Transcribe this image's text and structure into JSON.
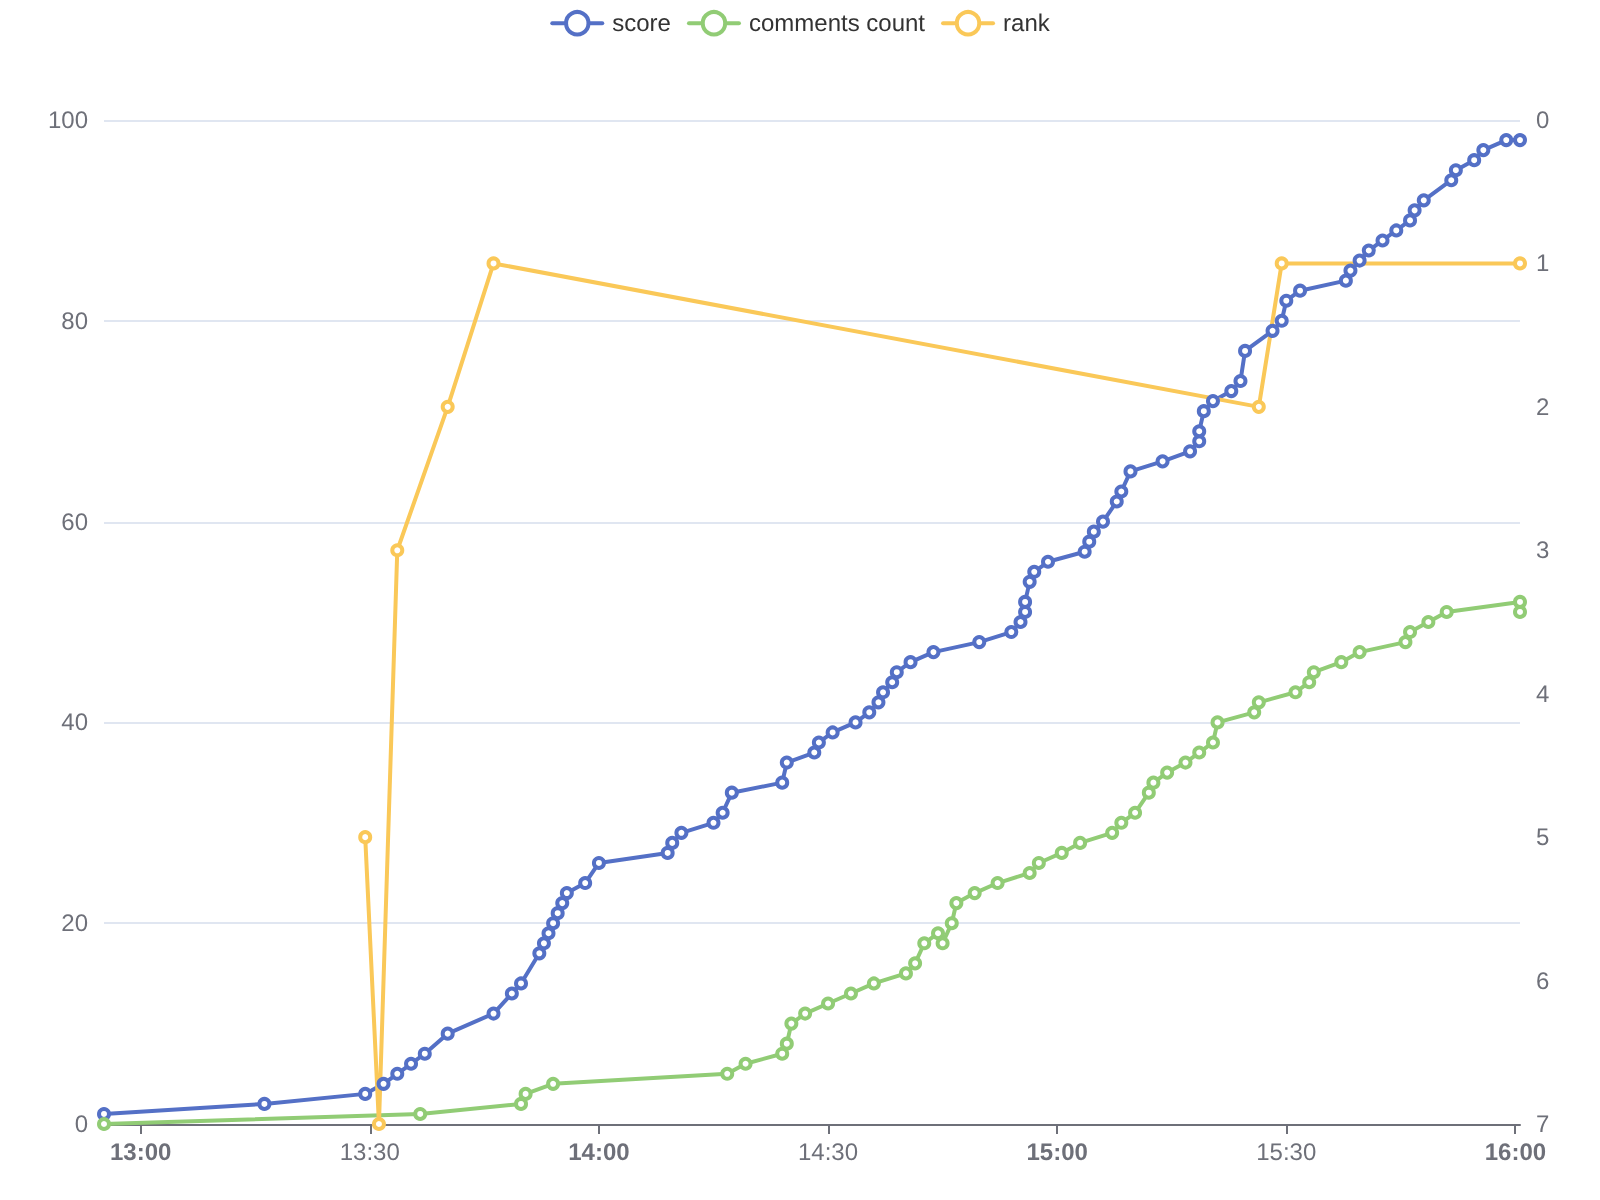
{
  "chart_data": {
    "type": "line",
    "legend": "top",
    "marker": "circle",
    "line_style": "solid",
    "grid": "y",
    "xlim": [
      12.92,
      16.01
    ],
    "xticks": [
      {
        "value": 13,
        "label": "13:00"
      },
      {
        "value": 13.5,
        "label": "13:30"
      },
      {
        "value": 14,
        "label": "14:00"
      },
      {
        "value": 14.5,
        "label": "14:30"
      },
      {
        "value": 15,
        "label": "15:00"
      },
      {
        "value": 15.5,
        "label": "15:30"
      },
      {
        "value": 16,
        "label": "16:00"
      }
    ],
    "ylim": [
      0,
      100
    ],
    "yticks": [
      0,
      20,
      40,
      60,
      80,
      100
    ],
    "y2lim": [
      7,
      0
    ],
    "y2ticks": [
      0,
      1,
      2,
      3,
      4,
      5,
      6,
      7
    ],
    "series": [
      {
        "name": "score",
        "color": "#5470c6",
        "x": [
          12.92,
          13.27,
          13.49,
          13.53,
          13.56,
          13.59,
          13.62,
          13.67,
          13.77,
          13.81,
          13.83,
          13.87,
          13.88,
          13.89,
          13.9,
          13.91,
          13.92,
          13.93,
          13.97,
          14.0,
          14.15,
          14.16,
          14.18,
          14.25,
          14.27,
          14.29,
          14.4,
          14.41,
          14.47,
          14.48,
          14.51,
          14.56,
          14.59,
          14.61,
          14.62,
          14.64,
          14.65,
          14.68,
          14.73,
          14.83,
          14.9,
          14.92,
          14.93,
          14.93,
          14.94,
          14.95,
          14.98,
          15.06,
          15.07,
          15.08,
          15.1,
          15.13,
          15.14,
          15.16,
          15.23,
          15.29,
          15.31,
          15.31,
          15.32,
          15.34,
          15.38,
          15.4,
          15.41,
          15.47,
          15.49,
          15.5,
          15.53,
          15.63,
          15.64,
          15.66,
          15.68,
          15.71,
          15.74,
          15.77,
          15.78,
          15.8,
          15.86,
          15.87,
          15.91,
          15.93,
          15.98,
          16.01
        ],
        "values": [
          1,
          2,
          3,
          4,
          5,
          6,
          7,
          9,
          11,
          13,
          14,
          17,
          18,
          19,
          20,
          21,
          22,
          23,
          24,
          26,
          27,
          28,
          29,
          30,
          31,
          33,
          34,
          36,
          37,
          38,
          39,
          40,
          41,
          42,
          43,
          44,
          45,
          46,
          47,
          48,
          49,
          50,
          51,
          52,
          54,
          55,
          56,
          57,
          58,
          59,
          60,
          62,
          63,
          65,
          66,
          67,
          68,
          69,
          71,
          72,
          73,
          74,
          77,
          79,
          80,
          82,
          83,
          84,
          85,
          86,
          87,
          88,
          89,
          90,
          91,
          92,
          94,
          95,
          96,
          97,
          98,
          98
        ]
      },
      {
        "name": "comments count",
        "color": "#91cc75",
        "x": [
          12.92,
          13.61,
          13.83,
          13.84,
          13.9,
          14.28,
          14.32,
          14.4,
          14.41,
          14.42,
          14.45,
          14.5,
          14.55,
          14.6,
          14.67,
          14.69,
          14.71,
          14.74,
          14.75,
          14.77,
          14.78,
          14.82,
          14.87,
          14.94,
          14.96,
          15.01,
          15.05,
          15.12,
          15.14,
          15.17,
          15.2,
          15.21,
          15.24,
          15.28,
          15.31,
          15.34,
          15.35,
          15.43,
          15.44,
          15.52,
          15.55,
          15.56,
          15.62,
          15.66,
          15.76,
          15.77,
          15.81,
          15.85,
          16.01,
          16.01
        ],
        "values": [
          0,
          1,
          2,
          3,
          4,
          5,
          6,
          7,
          8,
          10,
          11,
          12,
          13,
          14,
          15,
          16,
          18,
          19,
          18,
          20,
          22,
          23,
          24,
          25,
          26,
          27,
          28,
          29,
          30,
          31,
          33,
          34,
          35,
          36,
          37,
          38,
          40,
          41,
          42,
          43,
          44,
          45,
          46,
          47,
          48,
          49,
          50,
          51,
          52,
          51
        ]
      },
      {
        "name": "rank",
        "color": "#fac858",
        "axis": "y2",
        "x": [
          13.49,
          13.52,
          13.56,
          13.67,
          13.77,
          15.44,
          15.49,
          16.01
        ],
        "values": [
          5,
          7,
          3,
          2,
          1,
          2,
          1,
          1
        ]
      }
    ]
  }
}
